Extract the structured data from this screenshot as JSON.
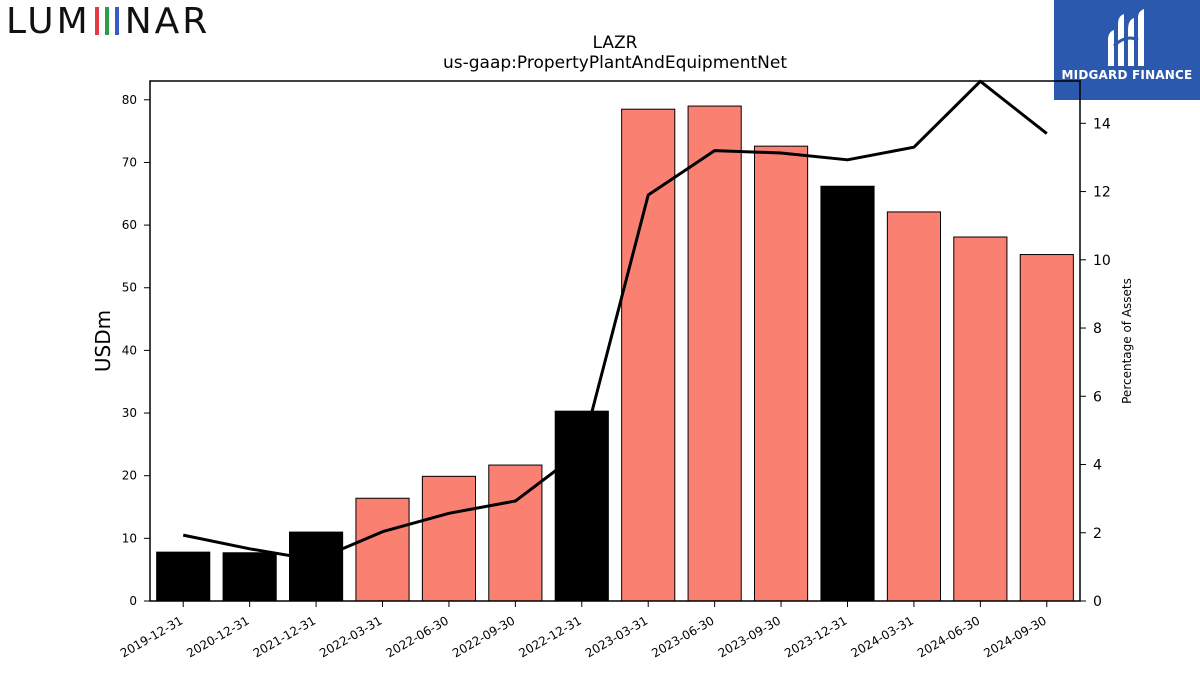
{
  "branding": {
    "left_logo_text": "LUMINAR",
    "left_logo_i_colors": [
      "#e63946",
      "#2a9d4a",
      "#3a5bc7"
    ],
    "right_logo_text": "MIDGARD FINANCE",
    "right_logo_bg": "#2b59ad"
  },
  "chart_data": {
    "type": "bar",
    "title": "LAZR",
    "subtitle": "us-gaap:PropertyPlantAndEquipmentNet",
    "ylabel": "USDm",
    "y2label": "Percentage of Assets",
    "ylim": [
      0,
      83
    ],
    "y2lim": [
      0,
      15.24
    ],
    "yticks": [
      0,
      10,
      20,
      30,
      40,
      50,
      60,
      70,
      80
    ],
    "y2ticks": [
      0,
      2,
      4,
      6,
      8,
      10,
      12,
      14
    ],
    "categories": [
      "2019-12-31",
      "2020-12-31",
      "2021-12-31",
      "2022-03-31",
      "2022-06-30",
      "2022-09-30",
      "2022-12-31",
      "2023-03-31",
      "2023-06-30",
      "2023-09-30",
      "2023-12-31",
      "2024-03-31",
      "2024-06-30",
      "2024-09-30"
    ],
    "series": [
      {
        "type": "bar",
        "axis": "left",
        "values": [
          7.8,
          7.7,
          11.0,
          16.4,
          19.9,
          21.7,
          30.3,
          78.5,
          79.0,
          72.6,
          66.2,
          62.1,
          58.1,
          55.3
        ],
        "colors": [
          "#000000",
          "#000000",
          "#000000",
          "#fa8072",
          "#fa8072",
          "#fa8072",
          "#000000",
          "#fa8072",
          "#fa8072",
          "#fa8072",
          "#000000",
          "#fa8072",
          "#fa8072",
          "#fa8072"
        ]
      },
      {
        "type": "line",
        "axis": "right",
        "color": "#000000",
        "values": [
          1.93,
          1.53,
          1.2,
          2.03,
          2.57,
          2.93,
          4.4,
          11.9,
          13.2,
          13.13,
          12.93,
          13.3,
          15.23,
          13.7
        ]
      }
    ]
  }
}
